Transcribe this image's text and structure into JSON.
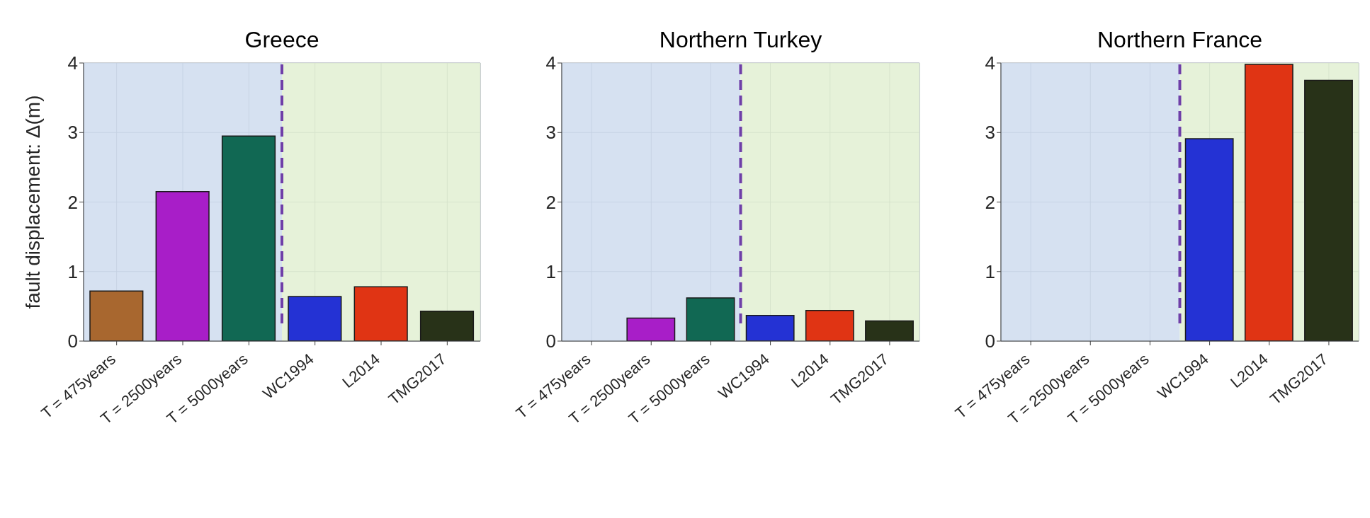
{
  "chart_data": [
    {
      "type": "bar",
      "title": "Greece",
      "ylabel": "fault displacement: Δ(m)",
      "categories": [
        "T = 475years",
        "T = 2500years",
        "T = 5000years",
        "WC1994",
        "L2014",
        "TMG2017"
      ],
      "values": [
        0.72,
        2.15,
        2.95,
        0.64,
        0.78,
        0.43
      ],
      "colors": [
        "#a8672f",
        "#a81ec8",
        "#116853",
        "#2432d4",
        "#e03414",
        "#283218"
      ],
      "ylim": [
        0,
        4
      ],
      "yticks": [
        0,
        1,
        2,
        3,
        4
      ],
      "grid": true,
      "bands": [
        {
          "axis": "x",
          "from": "T = 475years",
          "to": "T = 5000years",
          "color": "#cfdcef"
        },
        {
          "axis": "x",
          "from": "WC1994",
          "to": "TMG2017",
          "color": "#e2f0d2"
        }
      ]
    },
    {
      "type": "bar",
      "title": "Northern Turkey",
      "categories": [
        "T = 475years",
        "T = 2500years",
        "T = 5000years",
        "WC1994",
        "L2014",
        "TMG2017"
      ],
      "values": [
        null,
        0.33,
        0.62,
        0.37,
        0.44,
        0.29
      ],
      "colors": [
        "#a8672f",
        "#a81ec8",
        "#116853",
        "#2432d4",
        "#e03414",
        "#283218"
      ],
      "ylim": [
        0,
        4
      ],
      "yticks": [
        0,
        1,
        2,
        3,
        4
      ],
      "grid": true,
      "bands": [
        {
          "axis": "x",
          "from": "T = 475years",
          "to": "T = 5000years",
          "color": "#cfdcef"
        },
        {
          "axis": "x",
          "from": "WC1994",
          "to": "TMG2017",
          "color": "#e2f0d2"
        }
      ]
    },
    {
      "type": "bar",
      "title": "Northern France",
      "categories": [
        "T = 475years",
        "T = 2500years",
        "T = 5000years",
        "WC1994",
        "L2014",
        "TMG2017"
      ],
      "values": [
        null,
        null,
        null,
        2.91,
        3.98,
        3.75
      ],
      "colors": [
        "#a8672f",
        "#a81ec8",
        "#116853",
        "#2432d4",
        "#e03414",
        "#283218"
      ],
      "ylim": [
        0,
        4
      ],
      "yticks": [
        0,
        1,
        2,
        3,
        4
      ],
      "grid": true,
      "bands": [
        {
          "axis": "x",
          "from": "T = 475years",
          "to": "T = 5000years",
          "color": "#cfdcef"
        },
        {
          "axis": "x",
          "from": "WC1994",
          "to": "TMG2017",
          "color": "#e2f0d2"
        }
      ]
    }
  ]
}
